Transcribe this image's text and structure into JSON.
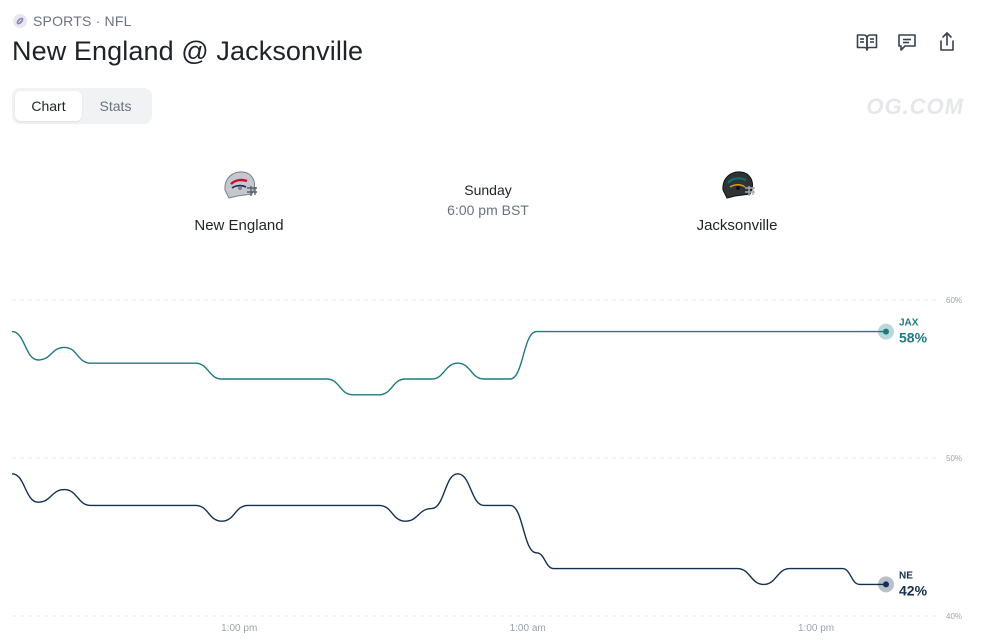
{
  "breadcrumb": {
    "icon": "football-icon",
    "text": "SPORTS · NFL"
  },
  "title": "New England @ Jacksonville",
  "actions": [
    {
      "name": "rules-button",
      "icon": "book-icon"
    },
    {
      "name": "comments-button",
      "icon": "comment-icon"
    },
    {
      "name": "share-button",
      "icon": "share-icon"
    }
  ],
  "tabs": [
    {
      "label": "Chart",
      "active": true
    },
    {
      "label": "Stats",
      "active": false
    }
  ],
  "watermark": "OG.COM",
  "matchup": {
    "home": {
      "name": "New England",
      "icon": "helmet-icon"
    },
    "away": {
      "name": "Jacksonville",
      "icon": "helmet-icon"
    },
    "day": "Sunday",
    "time": "6:00 pm BST"
  },
  "chart_data": {
    "type": "line",
    "y_labels": [
      "60%",
      "50%",
      "40%"
    ],
    "ylim": [
      40,
      60
    ],
    "x_ticks": [
      "1:00 pm",
      "1:00 am",
      "1:00 pm"
    ],
    "series": [
      {
        "name": "JAX",
        "color": "#1f7a80",
        "current": "58%",
        "points": [
          [
            0,
            58.0
          ],
          [
            0.03,
            56.2
          ],
          [
            0.06,
            57.0
          ],
          [
            0.09,
            56.0
          ],
          [
            0.21,
            56.0
          ],
          [
            0.24,
            55.0
          ],
          [
            0.36,
            55.0
          ],
          [
            0.39,
            54.0
          ],
          [
            0.42,
            54.0
          ],
          [
            0.45,
            55.0
          ],
          [
            0.48,
            55.0
          ],
          [
            0.51,
            56.0
          ],
          [
            0.54,
            55.0
          ],
          [
            0.57,
            55.0
          ],
          [
            0.6,
            58.0
          ],
          [
            1.0,
            58.0
          ]
        ]
      },
      {
        "name": "NE",
        "color": "#14304d",
        "current": "42%",
        "points": [
          [
            0,
            49.0
          ],
          [
            0.03,
            47.2
          ],
          [
            0.06,
            48.0
          ],
          [
            0.09,
            47.0
          ],
          [
            0.21,
            47.0
          ],
          [
            0.24,
            46.0
          ],
          [
            0.27,
            47.0
          ],
          [
            0.42,
            47.0
          ],
          [
            0.45,
            46.0
          ],
          [
            0.48,
            46.8
          ],
          [
            0.51,
            49.0
          ],
          [
            0.54,
            47.0
          ],
          [
            0.57,
            47.0
          ],
          [
            0.6,
            44.0
          ],
          [
            0.62,
            43.0
          ],
          [
            0.83,
            43.0
          ],
          [
            0.86,
            42.0
          ],
          [
            0.89,
            43.0
          ],
          [
            0.95,
            43.0
          ],
          [
            0.97,
            42.0
          ],
          [
            1.0,
            42.0
          ]
        ]
      }
    ]
  }
}
